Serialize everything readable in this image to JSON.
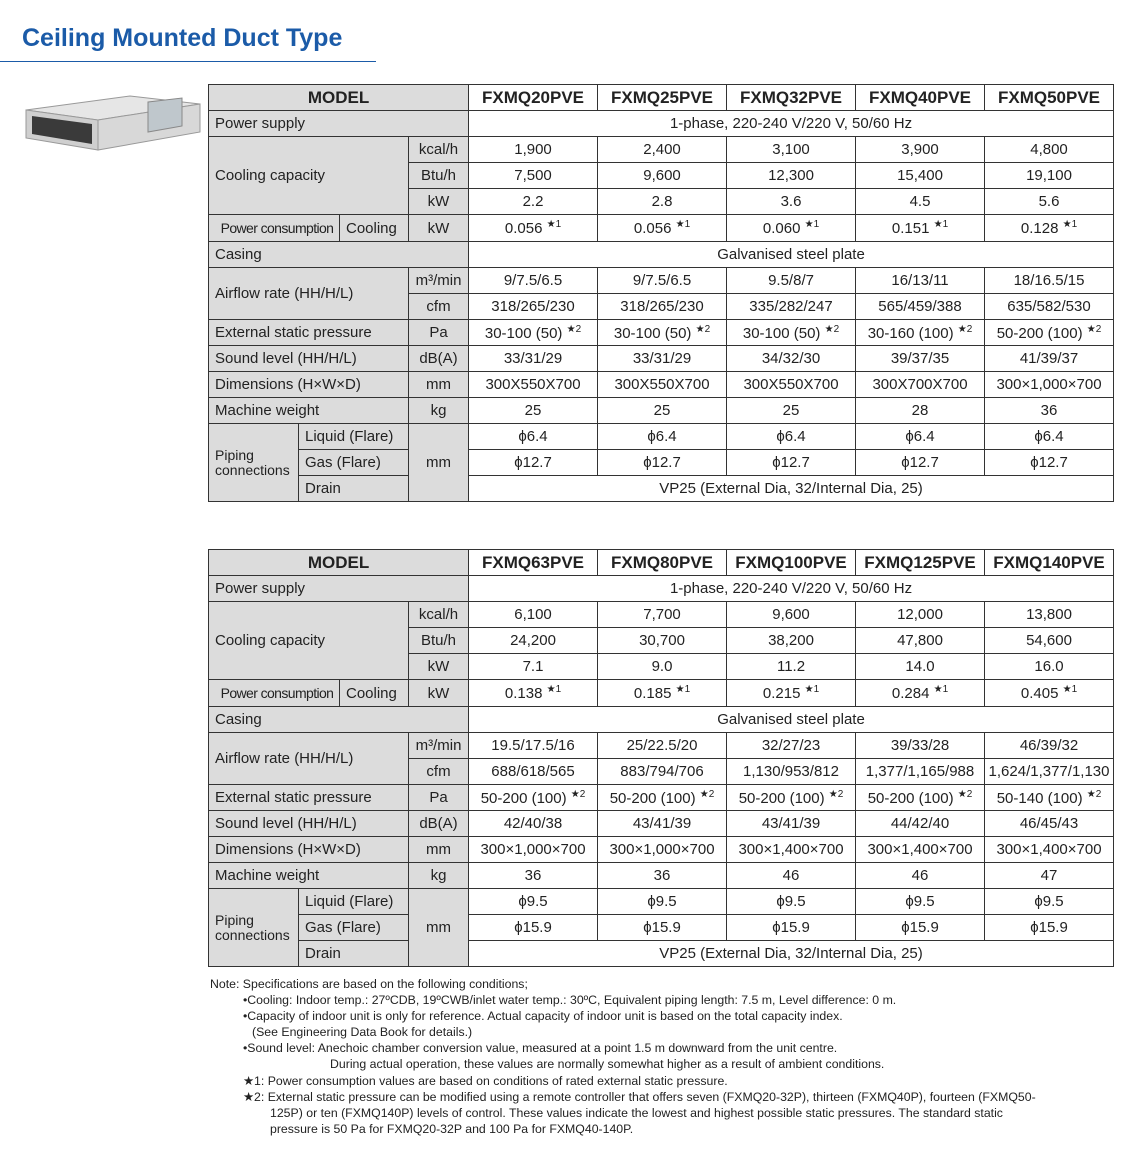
{
  "title": "Ceiling Mounted Duct Type",
  "tables": [
    {
      "model_label": "MODEL",
      "models": [
        "FXMQ20PVE",
        "FXMQ25PVE",
        "FXMQ32PVE",
        "FXMQ40PVE",
        "FXMQ50PVE"
      ],
      "power_supply": {
        "label": "Power supply",
        "value": "1-phase, 220-240 V/220 V, 50/60 Hz"
      },
      "cooling_capacity": {
        "label": "Cooling capacity",
        "rows": [
          {
            "unit": "kcal/h",
            "values": [
              "1,900",
              "2,400",
              "3,100",
              "3,900",
              "4,800"
            ]
          },
          {
            "unit": "Btu/h",
            "values": [
              "7,500",
              "9,600",
              "12,300",
              "15,400",
              "19,100"
            ]
          },
          {
            "unit": "kW",
            "values": [
              "2.2",
              "2.8",
              "3.6",
              "4.5",
              "5.6"
            ]
          }
        ]
      },
      "power_consumption": {
        "label": "Power consumption",
        "mode": "Cooling",
        "unit": "kW",
        "values": [
          "0.056",
          "0.056",
          "0.060",
          "0.151",
          "0.128"
        ],
        "mark": "★1"
      },
      "casing": {
        "label": "Casing",
        "value": "Galvanised steel plate"
      },
      "airflow_rate": {
        "label": "Airflow rate (HH/H/L)",
        "rows": [
          {
            "unit": "m³/min",
            "values": [
              "9/7.5/6.5",
              "9/7.5/6.5",
              "9.5/8/7",
              "16/13/11",
              "18/16.5/15"
            ]
          },
          {
            "unit": "cfm",
            "values": [
              "318/265/230",
              "318/265/230",
              "335/282/247",
              "565/459/388",
              "635/582/530"
            ]
          }
        ]
      },
      "external_static_pressure": {
        "label": "External static pressure",
        "unit": "Pa",
        "values": [
          "30-100 (50)",
          "30-100 (50)",
          "30-100 (50)",
          "30-160 (100)",
          "50-200 (100)"
        ],
        "mark": "★2"
      },
      "sound_level": {
        "label": "Sound level (HH/H/L)",
        "unit": "dB(A)",
        "values": [
          "33/31/29",
          "33/31/29",
          "34/32/30",
          "39/37/35",
          "41/39/37"
        ]
      },
      "dimensions": {
        "label": "Dimensions (H×W×D)",
        "unit": "mm",
        "values": [
          "300X550X700",
          "300X550X700",
          "300X550X700",
          "300X700X700",
          "300×1,000×700"
        ]
      },
      "machine_weight": {
        "label": "Machine weight",
        "unit": "kg",
        "values": [
          "25",
          "25",
          "25",
          "28",
          "36"
        ]
      },
      "piping_connections": {
        "label": "Piping connections",
        "unit": "mm",
        "rows": [
          {
            "label": "Liquid (Flare)",
            "values": [
              "ϕ6.4",
              "ϕ6.4",
              "ϕ6.4",
              "ϕ6.4",
              "ϕ6.4"
            ]
          },
          {
            "label": "Gas (Flare)",
            "values": [
              "ϕ12.7",
              "ϕ12.7",
              "ϕ12.7",
              "ϕ12.7",
              "ϕ12.7"
            ]
          }
        ],
        "drain": {
          "label": "Drain",
          "value": "VP25 (External Dia, 32/Internal Dia, 25)"
        }
      }
    },
    {
      "model_label": "MODEL",
      "models": [
        "FXMQ63PVE",
        "FXMQ80PVE",
        "FXMQ100PVE",
        "FXMQ125PVE",
        "FXMQ140PVE"
      ],
      "power_supply": {
        "label": "Power supply",
        "value": "1-phase, 220-240 V/220 V, 50/60 Hz"
      },
      "cooling_capacity": {
        "label": "Cooling capacity",
        "rows": [
          {
            "unit": "kcal/h",
            "values": [
              "6,100",
              "7,700",
              "9,600",
              "12,000",
              "13,800"
            ]
          },
          {
            "unit": "Btu/h",
            "values": [
              "24,200",
              "30,700",
              "38,200",
              "47,800",
              "54,600"
            ]
          },
          {
            "unit": "kW",
            "values": [
              "7.1",
              "9.0",
              "11.2",
              "14.0",
              "16.0"
            ]
          }
        ]
      },
      "power_consumption": {
        "label": "Power consumption",
        "mode": "Cooling",
        "unit": "kW",
        "values": [
          "0.138",
          "0.185",
          "0.215",
          "0.284",
          "0.405"
        ],
        "mark": "★1"
      },
      "casing": {
        "label": "Casing",
        "value": "Galvanised steel plate"
      },
      "airflow_rate": {
        "label": "Airflow rate (HH/H/L)",
        "rows": [
          {
            "unit": "m³/min",
            "values": [
              "19.5/17.5/16",
              "25/22.5/20",
              "32/27/23",
              "39/33/28",
              "46/39/32"
            ]
          },
          {
            "unit": "cfm",
            "values": [
              "688/618/565",
              "883/794/706",
              "1,130/953/812",
              "1,377/1,165/988",
              "1,624/1,377/1,130"
            ]
          }
        ]
      },
      "external_static_pressure": {
        "label": "External static pressure",
        "unit": "Pa",
        "values": [
          "50-200 (100)",
          "50-200 (100)",
          "50-200 (100)",
          "50-200 (100)",
          "50-140 (100)"
        ],
        "mark": "★2"
      },
      "sound_level": {
        "label": "Sound level (HH/H/L)",
        "unit": "dB(A)",
        "values": [
          "42/40/38",
          "43/41/39",
          "43/41/39",
          "44/42/40",
          "46/45/43"
        ]
      },
      "dimensions": {
        "label": "Dimensions (H×W×D)",
        "unit": "mm",
        "values": [
          "300×1,000×700",
          "300×1,000×700",
          "300×1,400×700",
          "300×1,400×700",
          "300×1,400×700"
        ]
      },
      "machine_weight": {
        "label": "Machine weight",
        "unit": "kg",
        "values": [
          "36",
          "36",
          "46",
          "46",
          "47"
        ]
      },
      "piping_connections": {
        "label": "Piping connections",
        "unit": "mm",
        "rows": [
          {
            "label": "Liquid (Flare)",
            "values": [
              "ϕ9.5",
              "ϕ9.5",
              "ϕ9.5",
              "ϕ9.5",
              "ϕ9.5"
            ]
          },
          {
            "label": "Gas (Flare)",
            "values": [
              "ϕ15.9",
              "ϕ15.9",
              "ϕ15.9",
              "ϕ15.9",
              "ϕ15.9"
            ]
          }
        ],
        "drain": {
          "label": "Drain",
          "value": "VP25 (External Dia, 32/Internal Dia, 25)"
        }
      }
    }
  ],
  "notes": {
    "lines": [
      "Note: Specifications are based on the following conditions;",
      "•Cooling: Indoor temp.: 27ºCDB, 19ºCWB/inlet water temp.: 30ºC, Equivalent piping length: 7.5 m, Level difference: 0 m.",
      "•Capacity of indoor unit is only for reference. Actual capacity of indoor unit is based on the total capacity index.",
      "(See Engineering Data Book for details.)",
      "•Sound level: Anechoic chamber conversion value, measured at a point 1.5 m downward from the unit centre.",
      "During actual operation, these values are normally somewhat higher as a result of ambient conditions.",
      "★1: Power consumption values are based on conditions of rated external static pressure.",
      "★2: External static pressure can be modified using a remote controller that offers seven (FXMQ20-32P), thirteen (FXMQ40P), fourteen (FXMQ50-",
      "125P) or ten (FXMQ140P) levels of control. These values indicate the lowest and highest possible static pressures. The standard static",
      "pressure is 50 Pa for FXMQ20-32P and 100 Pa for FXMQ40-140P."
    ]
  }
}
